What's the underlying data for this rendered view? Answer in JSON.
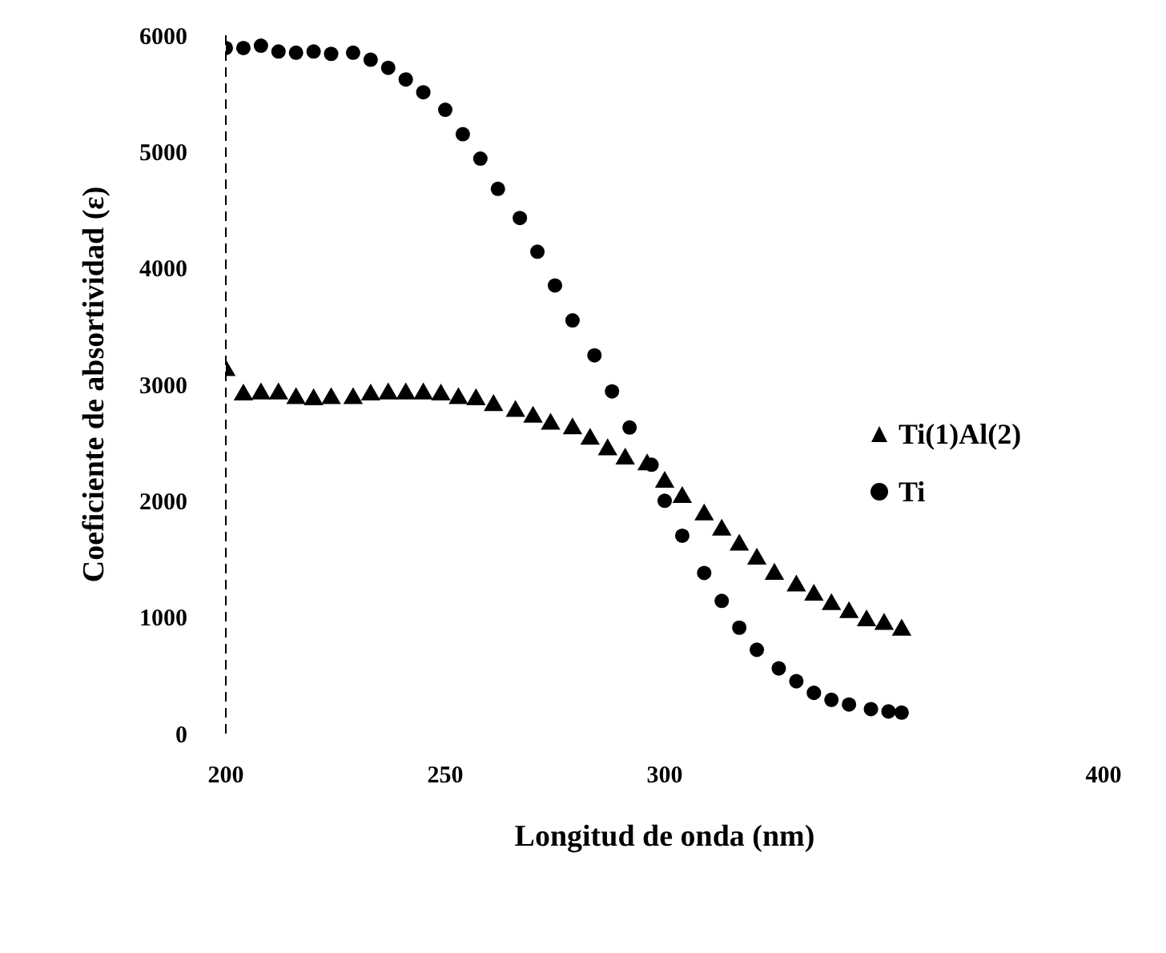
{
  "chart_data": {
    "type": "scatter",
    "xlabel": "Longitud de onda  (nm)",
    "ylabel": "Coeficiente de absortividad (ε)",
    "xlim": [
      200,
      400
    ],
    "xticks": [
      200,
      250,
      300,
      400
    ],
    "ylim": [
      0,
      6000
    ],
    "yticks": [
      0,
      1000,
      2000,
      3000,
      4000,
      5000,
      6000
    ],
    "grid": false,
    "legend": "right",
    "series": [
      {
        "name": "Ti(1)Al(2)",
        "color": "#000000",
        "marker": "triangle",
        "x": [
          200,
          204,
          208,
          212,
          216,
          220,
          224,
          229,
          233,
          237,
          241,
          245,
          249,
          253,
          257,
          261,
          266,
          270,
          274,
          279,
          283,
          287,
          291,
          296,
          300,
          304,
          309,
          313,
          317,
          321,
          325,
          330,
          334,
          338,
          342,
          346,
          350,
          354
        ],
        "values": [
          3120,
          2910,
          2920,
          2920,
          2880,
          2870,
          2880,
          2880,
          2910,
          2920,
          2920,
          2920,
          2910,
          2880,
          2870,
          2820,
          2770,
          2720,
          2660,
          2620,
          2530,
          2440,
          2360,
          2310,
          2160,
          2030,
          1880,
          1750,
          1620,
          1500,
          1370,
          1270,
          1190,
          1110,
          1040,
          970,
          940,
          890
        ]
      },
      {
        "name": "Ti",
        "color": "#000000",
        "marker": "circle",
        "x": [
          200,
          204,
          208,
          212,
          216,
          220,
          224,
          229,
          233,
          237,
          241,
          245,
          250,
          254,
          258,
          262,
          267,
          271,
          275,
          279,
          284,
          288,
          292,
          297,
          300,
          304,
          309,
          313,
          317,
          321,
          326,
          330,
          334,
          338,
          342,
          347,
          351,
          354
        ],
        "values": [
          5890,
          5890,
          5910,
          5860,
          5850,
          5860,
          5840,
          5850,
          5790,
          5720,
          5620,
          5510,
          5360,
          5150,
          4940,
          4680,
          4430,
          4140,
          3850,
          3550,
          3250,
          2940,
          2630,
          2310,
          2000,
          1700,
          1380,
          1140,
          910,
          720,
          560,
          450,
          350,
          290,
          250,
          210,
          190,
          180
        ]
      }
    ]
  }
}
